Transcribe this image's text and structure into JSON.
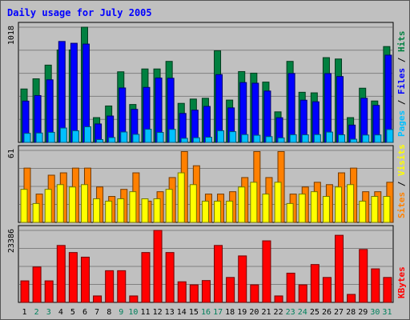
{
  "chart_data": [
    {
      "type": "bar",
      "title": "Daily usage for July 2005",
      "panel": "hits-files-pages",
      "x": [
        "1",
        "2",
        "3",
        "4",
        "5",
        "6",
        "7",
        "8",
        "9",
        "10",
        "11",
        "12",
        "13",
        "14",
        "15",
        "16",
        "17",
        "18",
        "19",
        "20",
        "21",
        "22",
        "23",
        "24",
        "25",
        "26",
        "27",
        "28",
        "29",
        "30",
        "31"
      ],
      "weekend_days": [
        "2",
        "3",
        "9",
        "10",
        "16",
        "17",
        "23",
        "24",
        "30",
        "31"
      ],
      "ymax_label": "1018",
      "ylim": [
        0,
        1018
      ],
      "legend": [
        "Pages",
        "Files",
        "Hits"
      ],
      "series": [
        {
          "name": "Hits",
          "color": "#008040",
          "values": [
            472,
            562,
            683,
            817,
            817,
            1018,
            219,
            322,
            624,
            335,
            649,
            649,
            716,
            345,
            383,
            390,
            810,
            374,
            626,
            612,
            533,
            270,
            716,
            443,
            438,
            749,
            737,
            219,
            479,
            366,
            847
          ]
        },
        {
          "name": "Files",
          "color": "#0000ff",
          "values": [
            365,
            414,
            553,
            892,
            876,
            869,
            163,
            233,
            481,
            292,
            486,
            569,
            567,
            256,
            285,
            318,
            599,
            305,
            529,
            523,
            454,
            218,
            609,
            373,
            359,
            608,
            582,
            153,
            390,
            327,
            771
          ]
        },
        {
          "name": "Pages",
          "color": "#00c0ff",
          "values": [
            80,
            83,
            89,
            127,
            103,
            138,
            25,
            43,
            92,
            71,
            116,
            88,
            115,
            36,
            41,
            46,
            103,
            95,
            69,
            63,
            51,
            40,
            68,
            67,
            69,
            91,
            67,
            28,
            65,
            66,
            114
          ]
        }
      ]
    },
    {
      "type": "bar",
      "panel": "sites-visits",
      "x": [
        "1",
        "2",
        "3",
        "4",
        "5",
        "6",
        "7",
        "8",
        "9",
        "10",
        "11",
        "12",
        "13",
        "14",
        "15",
        "16",
        "17",
        "18",
        "19",
        "20",
        "21",
        "22",
        "23",
        "24",
        "25",
        "26",
        "27",
        "28",
        "29",
        "30",
        "31"
      ],
      "ymax_label": "61",
      "ylim": [
        0,
        61
      ],
      "legend": [
        "Sites",
        "Visits"
      ],
      "series": [
        {
          "name": "Visits",
          "color": "#ff8000",
          "values": [
            46,
            24,
            40,
            42,
            46,
            46,
            30,
            22,
            28,
            42,
            18,
            26,
            38,
            60,
            48,
            24,
            24,
            26,
            38,
            60,
            38,
            60,
            24,
            30,
            34,
            32,
            42,
            46,
            26,
            26,
            34
          ]
        },
        {
          "name": "Sites",
          "color": "#ffff00",
          "values": [
            28,
            16,
            28,
            32,
            30,
            32,
            20,
            18,
            20,
            26,
            20,
            20,
            28,
            42,
            32,
            18,
            18,
            18,
            30,
            34,
            24,
            34,
            16,
            24,
            26,
            22,
            30,
            32,
            18,
            22,
            22
          ]
        }
      ]
    },
    {
      "type": "bar",
      "panel": "kbytes",
      "x": [
        "1",
        "2",
        "3",
        "4",
        "5",
        "6",
        "7",
        "8",
        "9",
        "10",
        "11",
        "12",
        "13",
        "14",
        "15",
        "16",
        "17",
        "18",
        "19",
        "20",
        "21",
        "22",
        "23",
        "24",
        "25",
        "26",
        "27",
        "28",
        "29",
        "30",
        "31"
      ],
      "ymax_label": "23386",
      "ylim": [
        0,
        23386
      ],
      "legend": [
        "KBytes"
      ],
      "series": [
        {
          "name": "KBytes",
          "color": "#ff0000",
          "values": [
            7000,
            11500,
            7000,
            18500,
            16200,
            14700,
            2100,
            10300,
            10300,
            2100,
            16200,
            23386,
            16200,
            6700,
            5700,
            7100,
            18500,
            8100,
            15100,
            5700,
            20000,
            2100,
            9500,
            5700,
            12300,
            8100,
            21800,
            2600,
            17200,
            10900,
            8100
          ]
        }
      ]
    }
  ]
}
